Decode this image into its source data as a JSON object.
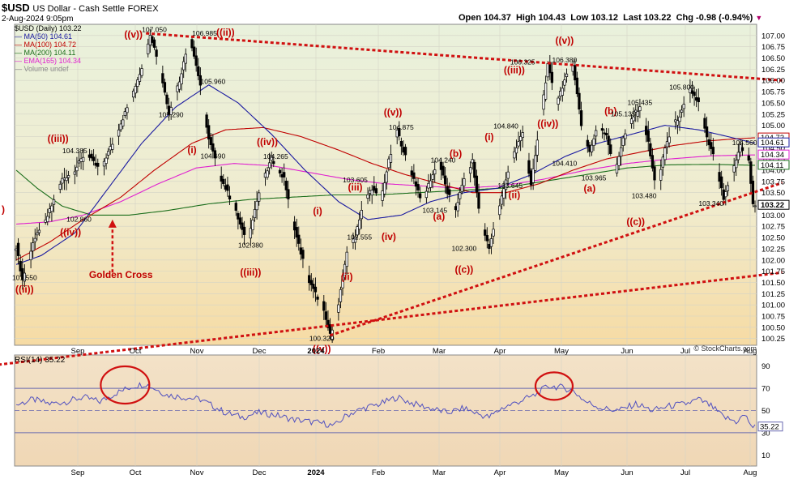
{
  "header": {
    "symbol": "$USD",
    "name": "US Dollar - Cash Settle",
    "exchange": "FOREX",
    "datetime": "2-Aug-2024 9:05pm",
    "open_label": "Open",
    "open": "104.37",
    "high_label": "High",
    "high": "104.43",
    "low_label": "Low",
    "low": "103.12",
    "last_label": "Last",
    "last": "103.22",
    "chg_label": "Chg",
    "chg": "-0.98 (-0.94%)",
    "copyright": "© StockCharts.com"
  },
  "legend": [
    {
      "text": "$USD (Daily) 103.22",
      "color": "#000000"
    },
    {
      "text": "MA(50) 104.61",
      "color": "#1a1aa0"
    },
    {
      "text": "MA(100) 104.72",
      "color": "#c00000"
    },
    {
      "text": "MA(200) 104.11",
      "color": "#1b6e1b"
    },
    {
      "text": "EMA(165) 104.34",
      "color": "#e020d0"
    },
    {
      "text": "Volume undef",
      "color": "#8a8a8a"
    }
  ],
  "rsi": {
    "label": "RSI(14) 35.22",
    "value": "35.22",
    "ticks": [
      "90",
      "70",
      "50",
      "30",
      "10"
    ]
  },
  "colors": {
    "ma50": "#1a1aa0",
    "ma100": "#c00000",
    "ma200": "#1b6e1b",
    "ema165": "#e020d0",
    "trend": "#d01010",
    "candle": "#000000",
    "rsi_line": "#5050c0",
    "circle": "#d01010",
    "annotation": "#c00000"
  },
  "chart_data": {
    "type": "candlestick",
    "title": "$USD US Dollar - Cash Settle FOREX",
    "xlabel": "",
    "ylabel": "",
    "ylim": [
      100.1,
      107.25
    ],
    "y_ticks": [
      "107.00",
      "106.75",
      "106.50",
      "106.25",
      "106.00",
      "105.75",
      "105.50",
      "105.25",
      "105.00",
      "104.75",
      "104.50",
      "104.25",
      "104.00",
      "103.75",
      "103.50",
      "103.25",
      "103.00",
      "102.75",
      "102.50",
      "102.25",
      "102.00",
      "101.75",
      "101.50",
      "101.25",
      "101.00",
      "100.75",
      "100.50",
      "100.25"
    ],
    "x_ticks": [
      "Sep",
      "Oct",
      "Nov",
      "Dec",
      "2024",
      "Feb",
      "Mar",
      "Apr",
      "May",
      "Jun",
      "Jul",
      "Aug"
    ],
    "price_tags": [
      {
        "text": "104.72",
        "value": 104.72,
        "color": "#c00000"
      },
      {
        "text": "104.61",
        "value": 104.61,
        "color": "#1a1aa0"
      },
      {
        "text": "104.34",
        "value": 104.34,
        "color": "#e020d0"
      },
      {
        "text": "104.11",
        "value": 104.11,
        "color": "#1b6e1b"
      },
      {
        "text": "103.22",
        "value": 103.22,
        "color": "#000000"
      }
    ],
    "price_path": [
      [
        0,
        102.3
      ],
      [
        3,
        101.55
      ],
      [
        8,
        102.4
      ],
      [
        14,
        102.86
      ],
      [
        22,
        103.8
      ],
      [
        28,
        104.0
      ],
      [
        33,
        104.385
      ],
      [
        40,
        104.0
      ],
      [
        46,
        104.6
      ],
      [
        54,
        105.5
      ],
      [
        60,
        106.3
      ],
      [
        64,
        107.05
      ],
      [
        68,
        106.4
      ],
      [
        73,
        105.29
      ],
      [
        78,
        106.0
      ],
      [
        83,
        106.985
      ],
      [
        88,
        105.9
      ],
      [
        92,
        104.69
      ],
      [
        98,
        103.8
      ],
      [
        104,
        103.2
      ],
      [
        110,
        102.38
      ],
      [
        116,
        103.5
      ],
      [
        122,
        104.265
      ],
      [
        128,
        103.8
      ],
      [
        134,
        102.5
      ],
      [
        140,
        101.5
      ],
      [
        146,
        101.0
      ],
      [
        150,
        100.32
      ],
      [
        154,
        101.0
      ],
      [
        158,
        102.2
      ],
      [
        162,
        102.555
      ],
      [
        166,
        103.3
      ],
      [
        170,
        103.605
      ],
      [
        174,
        103.3
      ],
      [
        178,
        104.2
      ],
      [
        182,
        104.875
      ],
      [
        186,
        104.3
      ],
      [
        190,
        103.8
      ],
      [
        194,
        103.3
      ],
      [
        198,
        103.8
      ],
      [
        202,
        104.2
      ],
      [
        206,
        103.5
      ],
      [
        210,
        103.146
      ],
      [
        214,
        103.8
      ],
      [
        218,
        104.2
      ],
      [
        222,
        102.8
      ],
      [
        226,
        102.3
      ],
      [
        230,
        103.0
      ],
      [
        234,
        103.8
      ],
      [
        238,
        104.4
      ],
      [
        242,
        104.84
      ],
      [
        246,
        103.645
      ],
      [
        250,
        105.0
      ],
      [
        254,
        106.325
      ],
      [
        258,
        105.5
      ],
      [
        262,
        106.0
      ],
      [
        266,
        106.38
      ],
      [
        270,
        105.0
      ],
      [
        274,
        104.41
      ],
      [
        278,
        105.0
      ],
      [
        282,
        104.8
      ],
      [
        286,
        103.965
      ],
      [
        290,
        104.7
      ],
      [
        294,
        105.135
      ],
      [
        298,
        105.435
      ],
      [
        302,
        104.6
      ],
      [
        306,
        103.48
      ],
      [
        310,
        104.5
      ],
      [
        314,
        105.0
      ],
      [
        318,
        105.3
      ],
      [
        322,
        105.8
      ],
      [
        326,
        105.5
      ],
      [
        330,
        104.7
      ],
      [
        334,
        104.2
      ],
      [
        338,
        103.34
      ],
      [
        342,
        103.9
      ],
      [
        346,
        104.56
      ],
      [
        350,
        104.2
      ],
      [
        352,
        103.22
      ]
    ],
    "ma50": [
      [
        0,
        101.9
      ],
      [
        12,
        102.1
      ],
      [
        28,
        102.6
      ],
      [
        44,
        103.6
      ],
      [
        60,
        104.6
      ],
      [
        76,
        105.4
      ],
      [
        92,
        105.9
      ],
      [
        106,
        105.5
      ],
      [
        122,
        104.8
      ],
      [
        138,
        104.0
      ],
      [
        154,
        103.3
      ],
      [
        168,
        102.9
      ],
      [
        184,
        103.0
      ],
      [
        198,
        103.3
      ],
      [
        214,
        103.5
      ],
      [
        230,
        103.6
      ],
      [
        246,
        103.9
      ],
      [
        262,
        104.3
      ],
      [
        278,
        104.6
      ],
      [
        294,
        104.8
      ],
      [
        310,
        105.0
      ],
      [
        326,
        104.9
      ],
      [
        340,
        104.75
      ],
      [
        352,
        104.61
      ]
    ],
    "ma100": [
      [
        0,
        102.0
      ],
      [
        16,
        102.4
      ],
      [
        32,
        102.9
      ],
      [
        50,
        103.4
      ],
      [
        66,
        104.0
      ],
      [
        84,
        104.6
      ],
      [
        100,
        104.9
      ],
      [
        118,
        104.95
      ],
      [
        136,
        104.75
      ],
      [
        154,
        104.45
      ],
      [
        170,
        104.15
      ],
      [
        186,
        103.9
      ],
      [
        202,
        103.7
      ],
      [
        218,
        103.5
      ],
      [
        234,
        103.5
      ],
      [
        250,
        103.7
      ],
      [
        266,
        104.0
      ],
      [
        282,
        104.25
      ],
      [
        298,
        104.4
      ],
      [
        314,
        104.55
      ],
      [
        330,
        104.65
      ],
      [
        344,
        104.7
      ],
      [
        352,
        104.72
      ]
    ],
    "ma200": [
      [
        0,
        104.0
      ],
      [
        10,
        103.6
      ],
      [
        22,
        103.2
      ],
      [
        36,
        103.0
      ],
      [
        54,
        103.0
      ],
      [
        72,
        103.1
      ],
      [
        92,
        103.25
      ],
      [
        112,
        103.35
      ],
      [
        132,
        103.4
      ],
      [
        152,
        103.45
      ],
      [
        172,
        103.45
      ],
      [
        192,
        103.5
      ],
      [
        212,
        103.55
      ],
      [
        232,
        103.6
      ],
      [
        252,
        103.75
      ],
      [
        272,
        103.9
      ],
      [
        292,
        104.05
      ],
      [
        312,
        104.12
      ],
      [
        332,
        104.13
      ],
      [
        352,
        104.11
      ]
    ],
    "ema165": [
      [
        0,
        102.8
      ],
      [
        16,
        102.85
      ],
      [
        32,
        103.0
      ],
      [
        50,
        103.3
      ],
      [
        68,
        103.7
      ],
      [
        86,
        104.05
      ],
      [
        104,
        104.15
      ],
      [
        122,
        104.1
      ],
      [
        140,
        103.95
      ],
      [
        158,
        103.8
      ],
      [
        176,
        103.7
      ],
      [
        194,
        103.65
      ],
      [
        212,
        103.6
      ],
      [
        232,
        103.65
      ],
      [
        252,
        103.8
      ],
      [
        272,
        104.0
      ],
      [
        292,
        104.15
      ],
      [
        312,
        104.25
      ],
      [
        332,
        104.32
      ],
      [
        352,
        104.34
      ]
    ],
    "trendlines": [
      {
        "name": "upper",
        "from": [
          62,
          107.05
        ],
        "to": [
          366,
          106.0
        ]
      },
      {
        "name": "rising-support",
        "from": [
          150,
          100.32
        ],
        "to": [
          366,
          103.72
        ]
      },
      {
        "name": "lower",
        "from": [
          -30,
          99.55
        ],
        "to": [
          366,
          101.72
        ]
      }
    ],
    "rsi_values": [
      [
        0,
        55
      ],
      [
        8,
        60
      ],
      [
        16,
        56
      ],
      [
        24,
        58
      ],
      [
        32,
        62
      ],
      [
        40,
        58
      ],
      [
        48,
        66
      ],
      [
        56,
        72
      ],
      [
        62,
        74
      ],
      [
        66,
        70
      ],
      [
        72,
        64
      ],
      [
        80,
        62
      ],
      [
        88,
        60
      ],
      [
        94,
        54
      ],
      [
        100,
        48
      ],
      [
        108,
        44
      ],
      [
        116,
        48
      ],
      [
        124,
        46
      ],
      [
        132,
        42
      ],
      [
        140,
        40
      ],
      [
        148,
        38
      ],
      [
        152,
        36
      ],
      [
        158,
        46
      ],
      [
        166,
        52
      ],
      [
        174,
        56
      ],
      [
        182,
        62
      ],
      [
        190,
        56
      ],
      [
        198,
        52
      ],
      [
        206,
        48
      ],
      [
        214,
        52
      ],
      [
        222,
        46
      ],
      [
        226,
        44
      ],
      [
        232,
        52
      ],
      [
        240,
        58
      ],
      [
        248,
        64
      ],
      [
        254,
        72
      ],
      [
        260,
        71
      ],
      [
        266,
        68
      ],
      [
        272,
        58
      ],
      [
        280,
        52
      ],
      [
        288,
        50
      ],
      [
        296,
        56
      ],
      [
        304,
        50
      ],
      [
        312,
        54
      ],
      [
        320,
        56
      ],
      [
        326,
        60
      ],
      [
        332,
        54
      ],
      [
        338,
        44
      ],
      [
        344,
        40
      ],
      [
        348,
        46
      ],
      [
        352,
        35
      ]
    ],
    "annotations": [
      {
        "text": "((ii))",
        "x": 4,
        "y": 101.27
      },
      {
        "text": "101.550",
        "x": 4,
        "y": 101.55
      },
      {
        "text": "((iv))",
        "x": 26,
        "y": 102.55
      },
      {
        "text": "102.860",
        "x": 30,
        "y": 102.85
      },
      {
        "text": "((iii))",
        "x": 20,
        "y": 104.63
      },
      {
        "text": "104.385",
        "x": 28,
        "y": 104.38
      },
      {
        "text": "((v))",
        "x": 56,
        "y": 106.95
      },
      {
        "text": "107.050",
        "x": 66,
        "y": 107.08
      },
      {
        "text": "105.290",
        "x": 74,
        "y": 105.18
      },
      {
        "text": "(i)",
        "x": 84,
        "y": 104.38
      },
      {
        "text": "106.985",
        "x": 90,
        "y": 107.0
      },
      {
        "text": "((ii))",
        "x": 100,
        "y": 107.0
      },
      {
        "text": "105.960",
        "x": 94,
        "y": 105.92
      },
      {
        "text": "104.690",
        "x": 94,
        "y": 104.26
      },
      {
        "text": "102.380",
        "x": 112,
        "y": 102.28
      },
      {
        "text": "((iii))",
        "x": 112,
        "y": 101.65
      },
      {
        "text": "((iv))",
        "x": 120,
        "y": 104.56
      },
      {
        "text": "104.265",
        "x": 124,
        "y": 104.25
      },
      {
        "text": "(i)",
        "x": 144,
        "y": 103.02
      },
      {
        "text": "(ii)",
        "x": 158,
        "y": 101.55
      },
      {
        "text": "100.320",
        "x": 146,
        "y": 100.2
      },
      {
        "text": "((v))",
        "x": 146,
        "y": 99.95
      },
      {
        "text": "102.555",
        "x": 164,
        "y": 102.46
      },
      {
        "text": "(iii)",
        "x": 162,
        "y": 103.55
      },
      {
        "text": "103.605",
        "x": 162,
        "y": 103.73
      },
      {
        "text": "(iv)",
        "x": 178,
        "y": 102.45
      },
      {
        "text": "((v))",
        "x": 180,
        "y": 105.22
      },
      {
        "text": "104.875",
        "x": 184,
        "y": 104.9
      },
      {
        "text": "104.240",
        "x": 204,
        "y": 104.17
      },
      {
        "text": "(b)",
        "x": 210,
        "y": 104.3
      },
      {
        "text": "103.145",
        "x": 200,
        "y": 103.05
      },
      {
        "text": "(a)",
        "x": 202,
        "y": 102.9
      },
      {
        "text": "102.300",
        "x": 214,
        "y": 102.2
      },
      {
        "text": "((c))",
        "x": 214,
        "y": 101.72
      },
      {
        "text": "(i)",
        "x": 226,
        "y": 104.67
      },
      {
        "text": "104.840",
        "x": 234,
        "y": 104.93
      },
      {
        "text": "103.645",
        "x": 236,
        "y": 103.6
      },
      {
        "text": "(ii)",
        "x": 238,
        "y": 103.38
      },
      {
        "text": "((iii))",
        "x": 238,
        "y": 106.16
      },
      {
        "text": "106.325",
        "x": 242,
        "y": 106.36
      },
      {
        "text": "((v))",
        "x": 262,
        "y": 106.82
      },
      {
        "text": "106.380",
        "x": 262,
        "y": 106.4
      },
      {
        "text": "((iv))",
        "x": 254,
        "y": 104.97
      },
      {
        "text": "104.410",
        "x": 262,
        "y": 104.1
      },
      {
        "text": "103.965",
        "x": 276,
        "y": 103.77
      },
      {
        "text": "(a)",
        "x": 274,
        "y": 103.52
      },
      {
        "text": "(b)",
        "x": 284,
        "y": 105.25
      },
      {
        "text": "105.135",
        "x": 290,
        "y": 105.2
      },
      {
        "text": "105.435",
        "x": 298,
        "y": 105.45
      },
      {
        "text": "103.480",
        "x": 300,
        "y": 103.38
      },
      {
        "text": "((c))",
        "x": 296,
        "y": 102.78
      },
      {
        "text": "105.800",
        "x": 318,
        "y": 105.8
      },
      {
        "text": "104.560",
        "x": 348,
        "y": 104.56
      },
      {
        "text": "103.340",
        "x": 332,
        "y": 103.21
      },
      {
        "text": "Golden Cross",
        "x": 50,
        "y": 101.6
      }
    ]
  }
}
